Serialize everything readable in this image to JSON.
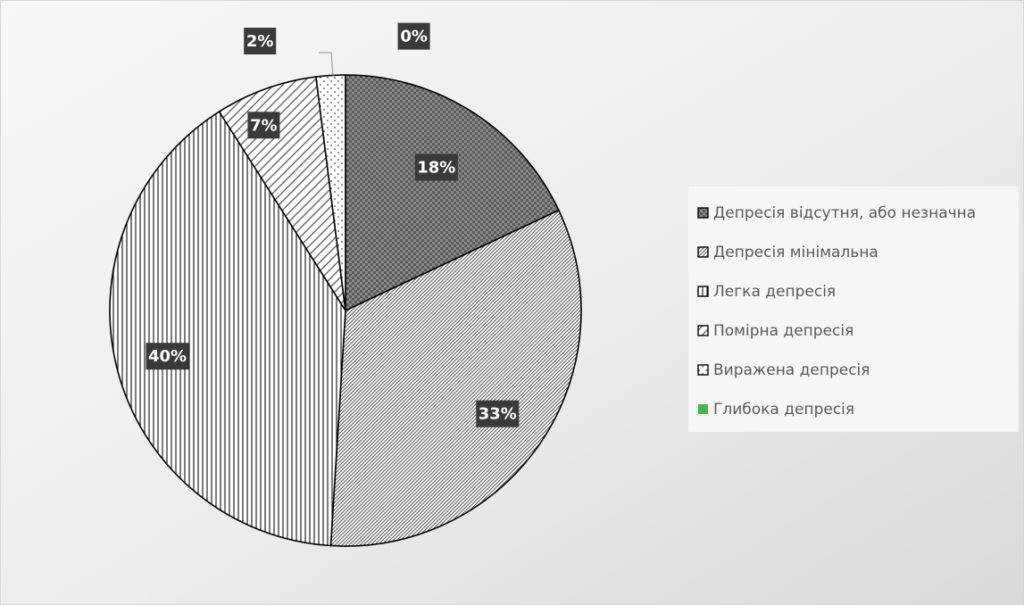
{
  "chart_data": {
    "type": "pie",
    "title": "",
    "categories": [
      "Депресія відсутня, або незначна",
      "Депресія мінімальна",
      "Легка депресія",
      "Помірна депресія",
      "Виражена депресія",
      "Глибока депресія"
    ],
    "values": [
      18,
      33,
      40,
      7,
      2,
      0
    ],
    "value_labels": [
      "18%",
      "33%",
      "40%",
      "7%",
      "2%",
      "0%"
    ],
    "legend_position": "right",
    "colors": {
      "dark_pattern": "#6b6b6b",
      "outline": "#000000",
      "label_background": "#3a3a3a",
      "label_text": "#ffffff",
      "legend_text": "#595959",
      "deep_depression_marker": "#4caf50"
    },
    "patterns": [
      "checker",
      "fine-diagonal",
      "vertical-stripes",
      "wide-diagonal",
      "dots",
      "solid"
    ]
  }
}
